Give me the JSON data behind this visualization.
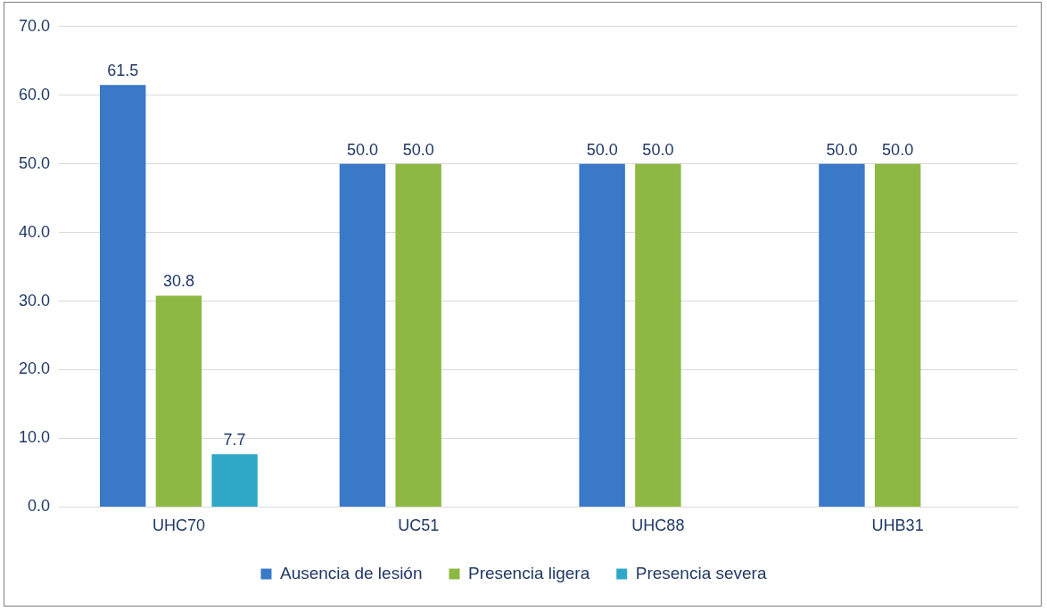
{
  "chart_data": {
    "type": "bar",
    "categories": [
      "UHC70",
      "UC51",
      "UHC88",
      "UHB31"
    ],
    "series": [
      {
        "name": "Ausencia de lesión",
        "color": "#3a78c8",
        "values": [
          61.5,
          50,
          50,
          50
        ],
        "value_labels": [
          "61.5",
          "50.0",
          "50.0",
          "50.0"
        ]
      },
      {
        "name": "Presencia ligera",
        "color": "#8db843",
        "values": [
          30.8,
          50,
          50,
          50
        ],
        "value_labels": [
          "30.8",
          "50.0",
          "50.0",
          "50.0"
        ]
      },
      {
        "name": "Presencia severa",
        "color": "#2fa8c8",
        "values": [
          7.7,
          null,
          null,
          null
        ],
        "value_labels": [
          "7.7",
          null,
          null,
          null
        ]
      }
    ],
    "ylim": [
      0,
      70
    ],
    "yticks": [
      {
        "value": 0,
        "label": "0.0"
      },
      {
        "value": 10,
        "label": "10.0"
      },
      {
        "value": 20,
        "label": "20.0"
      },
      {
        "value": 30,
        "label": "30.0"
      },
      {
        "value": 40,
        "label": "40.0"
      },
      {
        "value": 50,
        "label": "50.0"
      },
      {
        "value": 60,
        "label": "60.0"
      },
      {
        "value": 70,
        "label": "70.0"
      }
    ],
    "grid": "y",
    "legend": "bottom"
  }
}
